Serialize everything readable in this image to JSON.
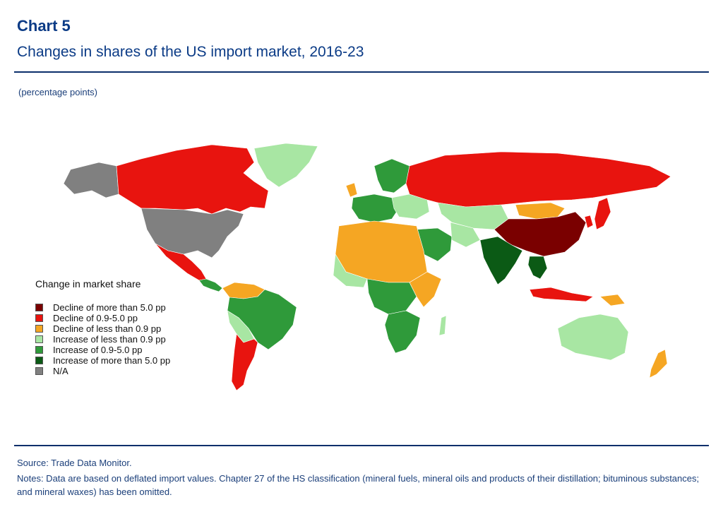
{
  "header": {
    "title": "Chart 5",
    "subtitle": "Changes in shares of the US import market, 2016-23",
    "unit": "(percentage points)"
  },
  "legend": {
    "title": "Change in market share",
    "items": [
      {
        "label": "Decline of more than 5.0 pp",
        "color": "#7a0000"
      },
      {
        "label": "Decline of 0.9-5.0 pp",
        "color": "#e8140f"
      },
      {
        "label": "Decline of less than 0.9 pp",
        "color": "#f5a623"
      },
      {
        "label": "Increase of less than 0.9 pp",
        "color": "#a8e6a3"
      },
      {
        "label": "Increase of 0.9-5.0 pp",
        "color": "#2f9a3a"
      },
      {
        "label": "Increase of more than 5.0 pp",
        "color": "#0b5a15"
      },
      {
        "label": "N/A",
        "color": "#808080"
      }
    ]
  },
  "footer": {
    "source": "Source: Trade Data Monitor.",
    "notes": "Notes: Data are based on deflated import values. Chapter 27 of the HS classification (mineral fuels, mineral oils and products of their distillation; bituminous substances; and mineral waxes) has been omitted."
  },
  "map_data": {
    "regions": [
      {
        "name": "United States",
        "category": "N/A"
      },
      {
        "name": "Alaska",
        "category": "N/A"
      },
      {
        "name": "Canada",
        "category": "Decline of 0.9-5.0 pp"
      },
      {
        "name": "Greenland",
        "category": "Increase of less than 0.9 pp"
      },
      {
        "name": "Mexico",
        "category": "Decline of 0.9-5.0 pp"
      },
      {
        "name": "Central America",
        "category": "Increase of 0.9-5.0 pp"
      },
      {
        "name": "Brazil",
        "category": "Increase of 0.9-5.0 pp"
      },
      {
        "name": "Argentina",
        "category": "Decline of 0.9-5.0 pp"
      },
      {
        "name": "Russia",
        "category": "Decline of 0.9-5.0 pp"
      },
      {
        "name": "China",
        "category": "Decline of more than 5.0 pp"
      },
      {
        "name": "Mongolia",
        "category": "Decline of less than 0.9 pp"
      },
      {
        "name": "India",
        "category": "Increase of more than 5.0 pp"
      },
      {
        "name": "Vietnam",
        "category": "Increase of more than 5.0 pp"
      },
      {
        "name": "Japan",
        "category": "Decline of 0.9-5.0 pp"
      },
      {
        "name": "North Africa",
        "category": "Decline of less than 0.9 pp"
      },
      {
        "name": "Southern Africa",
        "category": "Increase of 0.9-5.0 pp"
      },
      {
        "name": "Australia",
        "category": "Increase of less than 0.9 pp"
      },
      {
        "name": "New Zealand",
        "category": "Decline of less than 0.9 pp"
      },
      {
        "name": "Indonesia",
        "category": "Decline of 0.9-5.0 pp"
      },
      {
        "name": "Saudi Arabia",
        "category": "Increase of 0.9-5.0 pp"
      }
    ]
  }
}
